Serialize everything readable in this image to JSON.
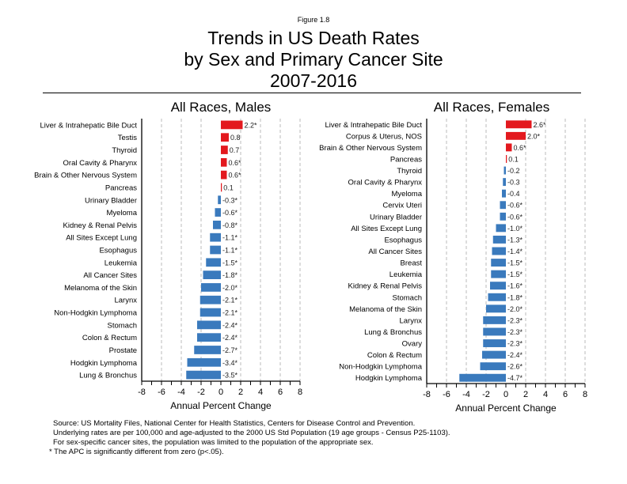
{
  "figure_label": "Figure 1.8",
  "title_lines": [
    "Trends in US Death Rates",
    "by Sex and Primary Cancer Site",
    "2007-2016"
  ],
  "colors": {
    "positive": "#e3191e",
    "negative": "#3a7abd",
    "grid": "#bbbbbb",
    "axis": "#000000"
  },
  "notes": [
    "Source: US Mortality Files, National Center for Health Statistics, Centers for Disease Control and Prevention.",
    "Underlying rates are per 100,000 and age-adjusted to the 2000 US Std Population (19 age groups - Census P25-1103).",
    "For sex-specific cancer sites, the population was limited to the population of the appropriate sex.",
    "* The APC is significantly different from zero (p<.05)."
  ],
  "chart_data": [
    {
      "type": "bar",
      "orientation": "horizontal",
      "title": "All Races, Males",
      "xlabel": "Annual Percent Change",
      "ylabel": "",
      "xlim": [
        -8,
        8
      ],
      "xticks": [
        -8,
        -6,
        -4,
        -2,
        0,
        2,
        4,
        6,
        8
      ],
      "grid": "vertical-dashed",
      "categories": [
        "Liver & Intrahepatic Bile Duct",
        "Testis",
        "Thyroid",
        "Oral Cavity & Pharynx",
        "Brain & Other Nervous System",
        "Pancreas",
        "Urinary Bladder",
        "Myeloma",
        "Kidney & Renal Pelvis",
        "All Sites Except Lung",
        "Esophagus",
        "Leukemia",
        "All Cancer Sites",
        "Melanoma of the Skin",
        "Larynx",
        "Non-Hodgkin Lymphoma",
        "Stomach",
        "Colon & Rectum",
        "Prostate",
        "Hodgkin Lymphoma",
        "Lung & Bronchus"
      ],
      "values": [
        2.2,
        0.8,
        0.7,
        0.6,
        0.6,
        0.1,
        -0.3,
        -0.6,
        -0.8,
        -1.1,
        -1.1,
        -1.5,
        -1.8,
        -2.0,
        -2.1,
        -2.1,
        -2.4,
        -2.4,
        -2.7,
        -3.4,
        -3.5
      ],
      "significant": [
        true,
        false,
        false,
        true,
        true,
        false,
        true,
        true,
        true,
        true,
        true,
        true,
        true,
        true,
        true,
        true,
        true,
        true,
        true,
        true,
        true
      ]
    },
    {
      "type": "bar",
      "orientation": "horizontal",
      "title": "All Races, Females",
      "xlabel": "Annual Percent Change",
      "ylabel": "",
      "xlim": [
        -8,
        8
      ],
      "xticks": [
        -8,
        -6,
        -4,
        -2,
        0,
        2,
        4,
        6,
        8
      ],
      "grid": "vertical-dashed",
      "categories": [
        "Liver & Intrahepatic Bile Duct",
        "Corpus & Uterus, NOS",
        "Brain & Other Nervous System",
        "Pancreas",
        "Thyroid",
        "Oral Cavity & Pharynx",
        "Myeloma",
        "Cervix Uteri",
        "Urinary Bladder",
        "All Sites Except Lung",
        "Esophagus",
        "All Cancer Sites",
        "Breast",
        "Leukemia",
        "Kidney & Renal Pelvis",
        "Stomach",
        "Melanoma of the Skin",
        "Larynx",
        "Lung & Bronchus",
        "Ovary",
        "Colon & Rectum",
        "Non-Hodgkin Lymphoma",
        "Hodgkin Lymphoma"
      ],
      "values": [
        2.6,
        2.0,
        0.6,
        0.1,
        -0.2,
        -0.3,
        -0.4,
        -0.6,
        -0.6,
        -1.0,
        -1.3,
        -1.4,
        -1.5,
        -1.5,
        -1.6,
        -1.8,
        -2.0,
        -2.3,
        -2.3,
        -2.3,
        -2.4,
        -2.6,
        -4.7
      ],
      "significant": [
        true,
        true,
        true,
        false,
        false,
        false,
        false,
        true,
        true,
        true,
        true,
        true,
        true,
        true,
        true,
        true,
        true,
        true,
        true,
        true,
        true,
        true,
        true
      ]
    }
  ]
}
